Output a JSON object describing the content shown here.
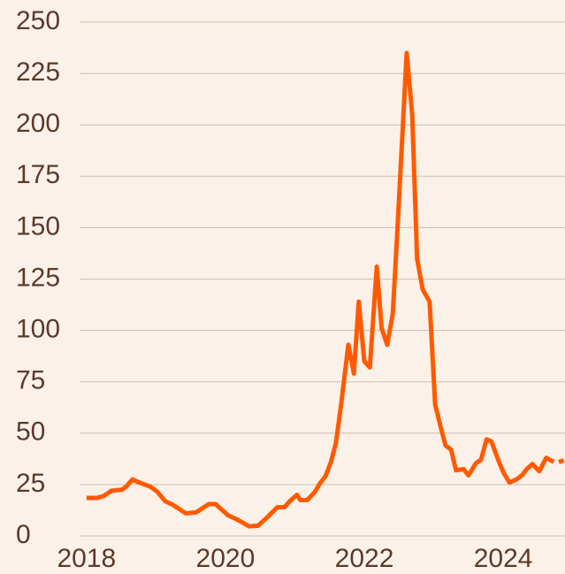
{
  "chart_data": {
    "type": "line",
    "x": [
      2018.0,
      2018.15,
      2018.25,
      2018.36,
      2018.51,
      2018.57,
      2018.66,
      2018.76,
      2018.92,
      2019.02,
      2019.13,
      2019.25,
      2019.43,
      2019.58,
      2019.76,
      2019.86,
      2019.94,
      2020.04,
      2020.17,
      2020.34,
      2020.47,
      2020.6,
      2020.75,
      2020.85,
      2020.93,
      2021.03,
      2021.08,
      2021.18,
      2021.29,
      2021.36,
      2021.44,
      2021.52,
      2021.59,
      2021.67,
      2021.77,
      2021.85,
      2021.92,
      2022.0,
      2022.08,
      2022.18,
      2022.25,
      2022.33,
      2022.41,
      2022.48,
      2022.61,
      2022.69,
      2022.76,
      2022.84,
      2022.94,
      2023.02,
      2023.1,
      2023.17,
      2023.25,
      2023.32,
      2023.43,
      2023.5,
      2023.61,
      2023.68,
      2023.76,
      2023.83,
      2023.94,
      2024.01,
      2024.09,
      2024.19,
      2024.27,
      2024.34,
      2024.42,
      2024.52,
      2024.62,
      2024.73,
      2024.8,
      2024.89
    ],
    "series": [
      {
        "color": "#ff5a00",
        "style": "solid",
        "values": [
          18.5,
          18.5,
          19.5,
          22,
          22.5,
          24,
          27.5,
          26,
          24,
          21.5,
          17,
          15,
          11,
          11.5,
          15.5,
          15.5,
          13,
          10,
          8,
          4.7,
          5,
          9,
          14,
          14,
          17,
          20,
          17.5,
          17.5,
          21.5,
          25.5,
          29,
          36,
          45,
          65,
          93,
          79,
          114,
          85,
          82,
          131,
          101,
          93,
          108,
          151,
          235,
          205,
          135,
          120,
          114,
          64,
          53,
          44,
          42,
          32,
          32.5,
          29.5,
          35.5,
          37,
          47,
          46,
          36,
          30.5,
          26,
          27.5,
          29.5,
          32.5,
          35,
          31.5,
          38,
          36,
          null,
          null
        ]
      },
      {
        "color": "#ff5a00",
        "style": "dashed",
        "values": [
          null,
          null,
          null,
          null,
          null,
          null,
          null,
          null,
          null,
          null,
          null,
          null,
          null,
          null,
          null,
          null,
          null,
          null,
          null,
          null,
          null,
          null,
          null,
          null,
          null,
          null,
          null,
          null,
          null,
          null,
          null,
          null,
          null,
          null,
          null,
          null,
          null,
          null,
          null,
          null,
          null,
          null,
          null,
          null,
          null,
          null,
          null,
          null,
          null,
          null,
          null,
          null,
          null,
          null,
          null,
          null,
          null,
          null,
          null,
          null,
          null,
          null,
          null,
          null,
          null,
          null,
          null,
          null,
          null,
          null,
          36,
          37
        ]
      }
    ],
    "xlim": [
      2017.9,
      2024.89
    ],
    "xticks": [
      2018,
      2020,
      2022,
      2024
    ],
    "ylim": [
      0,
      250
    ],
    "yticks": [
      0,
      25,
      50,
      75,
      100,
      125,
      150,
      175,
      200,
      225,
      250
    ],
    "grid": true
  }
}
